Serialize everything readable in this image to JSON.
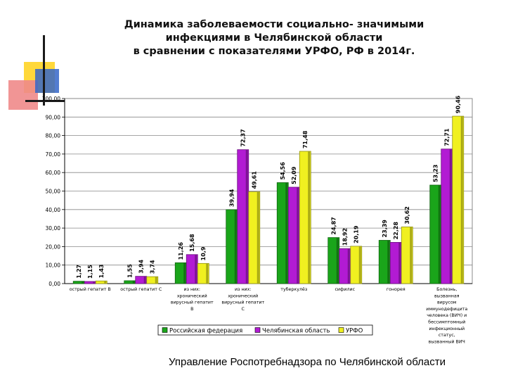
{
  "slide": {
    "title_lines": [
      "Динамика заболеваемости социально- значимыми",
      "инфекциями в Челябинской области",
      "в сравнении с показателями УРФО, РФ в 2014г."
    ],
    "footer": "Управление Роспотребнадзора по Челябинской области"
  },
  "chart_data": {
    "type": "bar",
    "title": "",
    "xlabel": "",
    "ylabel": "",
    "ylim": [
      0,
      100
    ],
    "yticks": [
      "0,00",
      "10,00",
      "20,00",
      "30,00",
      "40,00",
      "50,00",
      "60,00",
      "70,00",
      "80,00",
      "90,00",
      "100,00"
    ],
    "grid": true,
    "legend_position": "bottom",
    "categories": [
      [
        "острый гепатит В"
      ],
      [
        "острый гепатит С"
      ],
      [
        "из них:",
        "хронический",
        "вирусный гепатит",
        "В"
      ],
      [
        "из них:",
        "хронический",
        "вирусный гепатит",
        "С"
      ],
      [
        "туберкулёз"
      ],
      [
        "сифилис"
      ],
      [
        "гонорея"
      ],
      [
        "Болезнь,",
        "вызванная",
        "вирусом",
        "иммунодефицита",
        "человека (ВИЧ) и",
        "бессимптомный",
        "инфекционный",
        "статус,",
        "вызванный ВИЧ"
      ]
    ],
    "series": [
      {
        "name": "Российская федерация",
        "color": "#1aa51a",
        "values": [
          1.27,
          1.55,
          11.26,
          39.94,
          54.56,
          24.87,
          23.39,
          53.23
        ],
        "labels": [
          "1,27",
          "1,55",
          "11,26",
          "39,94",
          "54,56",
          "24,87",
          "23,39",
          "53,23"
        ]
      },
      {
        "name": "Челябинская область",
        "color": "#b21bd3",
        "values": [
          1.15,
          3.94,
          15.68,
          72.37,
          52.09,
          18.92,
          22.28,
          72.71
        ],
        "labels": [
          "1,15",
          "3,94",
          "15,68",
          "72,37",
          "52,09",
          "18,92",
          "22,28",
          "72,71"
        ]
      },
      {
        "name": "УРФО",
        "color": "#f0f020",
        "values": [
          1.43,
          3.74,
          10.9,
          49.61,
          71.48,
          20.19,
          30.62,
          90.46
        ],
        "labels": [
          "1,43",
          "3,74",
          "10,9",
          "49,61",
          "71,48",
          "20,19",
          "30,62",
          "90,46"
        ]
      }
    ]
  }
}
